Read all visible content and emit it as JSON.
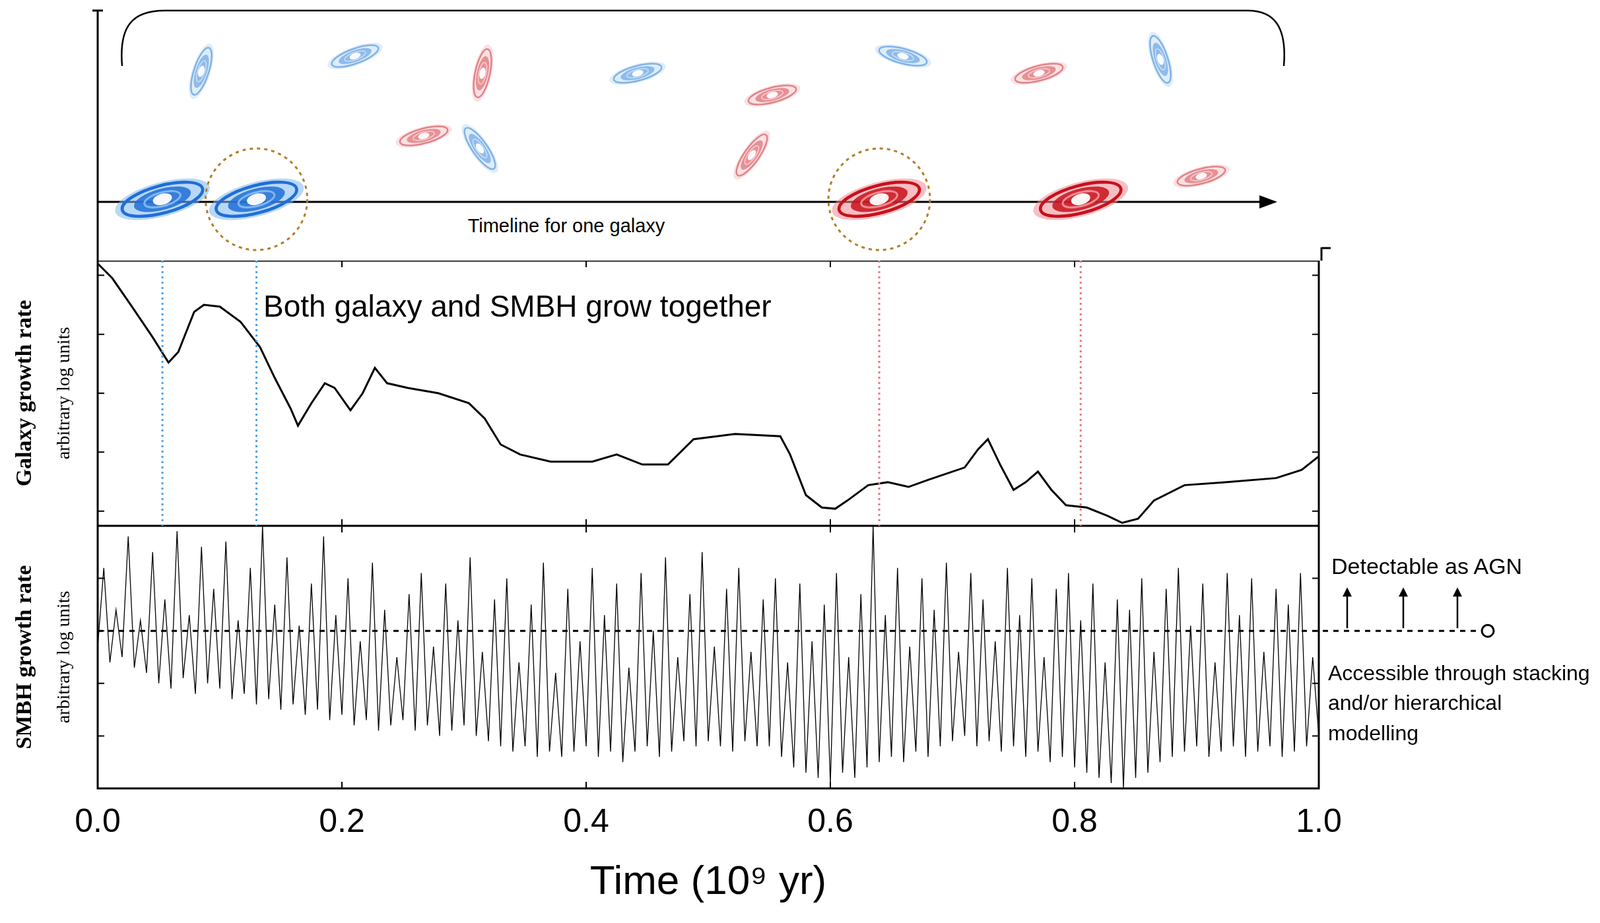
{
  "timeline": {
    "label": "Timeline for one galaxy",
    "galaxies": [
      {
        "x": 0.053,
        "color": "#1f6fd6",
        "highlighted": false
      },
      {
        "x": 0.13,
        "color": "#1f6fd6",
        "highlighted": true
      },
      {
        "x": 0.64,
        "color": "#c8101c",
        "highlighted": true
      },
      {
        "x": 0.805,
        "color": "#c8101c",
        "highlighted": false
      }
    ]
  },
  "chart_data": [
    {
      "type": "line",
      "y_label": "Galaxy growth rate",
      "y_sublabel": "arbitrary log units",
      "annotations": [
        "Both galaxy and SMBH grow together"
      ],
      "color": "#000000",
      "tick_labels": false,
      "xlim": [
        0,
        1
      ],
      "xticks": [
        0,
        0.2,
        0.4,
        0.6,
        0.8,
        1
      ],
      "ylim": [
        -0.25,
        4.25
      ],
      "yticks": [
        0,
        1,
        2,
        3,
        4
      ],
      "x": [
        0,
        0.012,
        0.028,
        0.045,
        0.058,
        0.066,
        0.079,
        0.087,
        0.1,
        0.117,
        0.133,
        0.145,
        0.158,
        0.164,
        0.175,
        0.186,
        0.194,
        0.207,
        0.217,
        0.227,
        0.237,
        0.254,
        0.279,
        0.304,
        0.317,
        0.33,
        0.346,
        0.371,
        0.405,
        0.425,
        0.446,
        0.467,
        0.488,
        0.522,
        0.559,
        0.567,
        0.58,
        0.593,
        0.604,
        0.614,
        0.631,
        0.647,
        0.664,
        0.68,
        0.71,
        0.721,
        0.729,
        0.739,
        0.75,
        0.76,
        0.77,
        0.781,
        0.793,
        0.81,
        0.827,
        0.839,
        0.852,
        0.865,
        0.89,
        0.923,
        0.965,
        0.986,
        1
      ],
      "values": [
        4.2,
        3.95,
        3.47,
        2.95,
        2.52,
        2.7,
        3.38,
        3.5,
        3.47,
        3.21,
        2.78,
        2.26,
        1.74,
        1.45,
        1.83,
        2.17,
        2.09,
        1.71,
        2.0,
        2.43,
        2.17,
        2.09,
        2.0,
        1.83,
        1.57,
        1.13,
        0.96,
        0.84,
        0.84,
        0.96,
        0.79,
        0.79,
        1.22,
        1.31,
        1.27,
        0.96,
        0.27,
        0.06,
        0.04,
        0.18,
        0.44,
        0.49,
        0.41,
        0.53,
        0.74,
        1.05,
        1.22,
        0.79,
        0.36,
        0.49,
        0.67,
        0.36,
        0.1,
        0.06,
        -0.08,
        -0.2,
        -0.13,
        0.18,
        0.44,
        0.49,
        0.56,
        0.7,
        0.93
      ]
    },
    {
      "type": "line",
      "x_label": "Time (10⁹ yr)",
      "y_label": "SMBH growth rate",
      "y_sublabel": "arbitrary log units",
      "annotations": [
        "Detectable as AGN",
        "Accessible through stacking and/or hierarchical modelling"
      ],
      "threshold": 0,
      "color": "#000000",
      "tick_labels": "x",
      "xlim": [
        0,
        1
      ],
      "xticks": [
        {
          "value": 0,
          "label": "0.0"
        },
        0.2,
        0.4,
        0.6,
        0.8,
        {
          "value": 1,
          "label": "1.0"
        }
      ],
      "ylim": [
        -3,
        2
      ],
      "yticks": [
        -3,
        -2,
        -1,
        0,
        1,
        2
      ],
      "x": [
        0,
        0.005,
        0.01,
        0.015,
        0.02,
        0.025,
        0.03,
        0.035,
        0.04,
        0.045,
        0.05,
        0.055,
        0.06,
        0.065,
        0.07,
        0.075,
        0.08,
        0.085,
        0.09,
        0.095,
        0.1,
        0.105,
        0.11,
        0.115,
        0.12,
        0.125,
        0.13,
        0.135,
        0.14,
        0.145,
        0.15,
        0.155,
        0.16,
        0.165,
        0.17,
        0.175,
        0.18,
        0.185,
        0.19,
        0.195,
        0.2,
        0.205,
        0.21,
        0.215,
        0.22,
        0.225,
        0.23,
        0.235,
        0.24,
        0.245,
        0.25,
        0.255,
        0.26,
        0.265,
        0.27,
        0.275,
        0.28,
        0.285,
        0.29,
        0.295,
        0.3,
        0.305,
        0.31,
        0.315,
        0.32,
        0.325,
        0.33,
        0.335,
        0.34,
        0.345,
        0.35,
        0.355,
        0.36,
        0.365,
        0.37,
        0.375,
        0.38,
        0.385,
        0.39,
        0.395,
        0.4,
        0.405,
        0.41,
        0.415,
        0.42,
        0.425,
        0.43,
        0.435,
        0.44,
        0.445,
        0.45,
        0.455,
        0.46,
        0.465,
        0.47,
        0.475,
        0.48,
        0.485,
        0.49,
        0.495,
        0.5,
        0.505,
        0.51,
        0.515,
        0.52,
        0.525,
        0.53,
        0.535,
        0.54,
        0.545,
        0.55,
        0.555,
        0.56,
        0.565,
        0.57,
        0.575,
        0.58,
        0.585,
        0.59,
        0.595,
        0.6,
        0.605,
        0.61,
        0.615,
        0.62,
        0.625,
        0.63,
        0.635,
        0.64,
        0.645,
        0.65,
        0.655,
        0.66,
        0.665,
        0.67,
        0.675,
        0.68,
        0.685,
        0.69,
        0.695,
        0.7,
        0.705,
        0.71,
        0.715,
        0.72,
        0.725,
        0.73,
        0.735,
        0.74,
        0.745,
        0.75,
        0.755,
        0.76,
        0.765,
        0.77,
        0.775,
        0.78,
        0.785,
        0.79,
        0.795,
        0.8,
        0.805,
        0.81,
        0.815,
        0.82,
        0.825,
        0.83,
        0.835,
        0.84,
        0.845,
        0.85,
        0.855,
        0.86,
        0.865,
        0.87,
        0.875,
        0.88,
        0.885,
        0.89,
        0.895,
        0.9,
        0.905,
        0.91,
        0.915,
        0.92,
        0.925,
        0.93,
        0.935,
        0.94,
        0.945,
        0.95,
        0.955,
        0.96,
        0.965,
        0.97,
        0.975,
        0.98,
        0.985,
        0.99,
        0.995,
        1
      ],
      "values": [
        -0.3,
        1.2,
        -0.6,
        0.4,
        -0.5,
        1.8,
        -0.7,
        0.2,
        -0.8,
        1.5,
        -1.0,
        0.6,
        -1.1,
        1.9,
        -0.9,
        0.3,
        -1.2,
        1.6,
        -1.0,
        0.8,
        -1.1,
        1.7,
        -1.3,
        0.2,
        -1.2,
        1.2,
        -1.4,
        2.0,
        -1.3,
        0.5,
        -1.5,
        1.4,
        -1.4,
        0.1,
        -1.6,
        0.9,
        -1.5,
        1.8,
        -1.7,
        0.3,
        -1.6,
        1.0,
        -1.8,
        -0.2,
        -1.7,
        1.3,
        -1.9,
        0.4,
        -1.8,
        -0.5,
        -1.7,
        0.7,
        -1.9,
        1.1,
        -1.8,
        -0.3,
        -2.0,
        0.9,
        -1.9,
        0.2,
        -1.8,
        1.4,
        -2.0,
        -0.4,
        -2.1,
        0.6,
        -2.2,
        1.0,
        -2.3,
        -0.6,
        -2.2,
        0.5,
        -2.4,
        1.3,
        -2.3,
        -0.8,
        -2.4,
        0.8,
        -2.3,
        -0.2,
        -2.2,
        1.2,
        -2.4,
        0.3,
        -2.3,
        0.9,
        -2.5,
        -0.7,
        -2.3,
        1.1,
        -2.2,
        0.0,
        -2.4,
        1.4,
        -2.3,
        -0.5,
        -2.1,
        0.7,
        -2.2,
        1.5,
        -2.1,
        -0.3,
        -2.2,
        0.8,
        -2.3,
        1.2,
        -2.1,
        -0.4,
        -2.2,
        0.6,
        -2.2,
        1.0,
        -2.4,
        -0.6,
        -2.6,
        0.9,
        -2.7,
        -0.2,
        -2.8,
        0.5,
        -2.9,
        1.1,
        -2.7,
        -0.5,
        -2.8,
        0.7,
        -2.6,
        2.0,
        -2.5,
        0.3,
        -2.4,
        1.2,
        -2.5,
        -0.3,
        -2.3,
        1.0,
        -2.4,
        0.4,
        -2.2,
        1.3,
        -2.1,
        -0.4,
        -2.0,
        1.1,
        -2.2,
        0.6,
        -2.1,
        -0.2,
        -2.3,
        1.2,
        -2.2,
        0.3,
        -2.4,
        1.0,
        -2.3,
        -0.5,
        -2.5,
        0.8,
        -2.4,
        1.1,
        -2.6,
        0.2,
        -2.7,
        0.9,
        -2.8,
        -0.6,
        -2.9,
        0.6,
        -3.0,
        0.4,
        -2.8,
        1.0,
        -2.7,
        -0.4,
        -2.5,
        0.8,
        -2.4,
        1.2,
        -2.3,
        0.1,
        -2.2,
        0.9,
        -2.4,
        -0.6,
        -2.3,
        1.1,
        -2.2,
        0.3,
        -2.4,
        1.0,
        -2.3,
        -0.4,
        -2.2,
        0.8,
        -2.4,
        0.5,
        -2.3,
        1.1,
        -2.2,
        -0.5,
        -2.0
      ]
    }
  ]
}
